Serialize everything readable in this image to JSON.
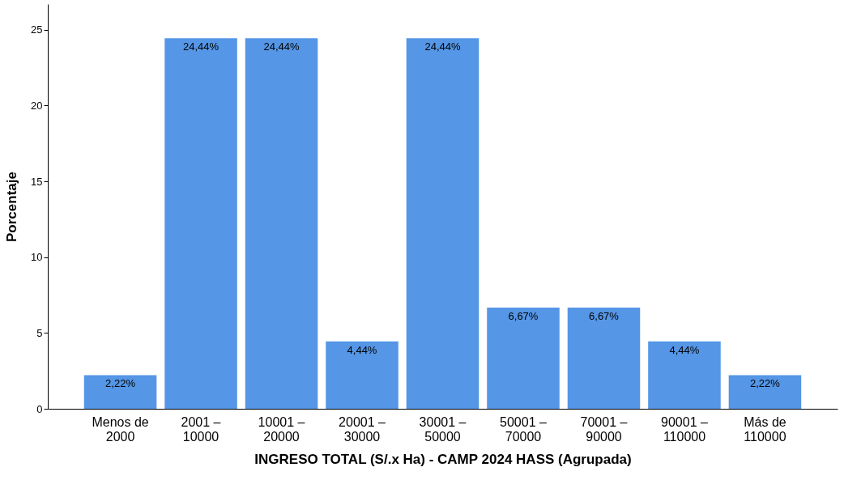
{
  "chart_data": {
    "type": "bar",
    "xlabel": "INGRESO TOTAL (S/.x Ha) - CAMP 2024 HASS (Agrupada)",
    "ylabel": "Porcentaje",
    "categories": [
      "Menos de 2000",
      "2001 – 10000",
      "10001 – 20000",
      "20001 – 30000",
      "30001 – 50000",
      "50001 – 70000",
      "70001 – 90000",
      "90001 – 110000",
      "Más de 110000"
    ],
    "values": [
      2.22,
      24.44,
      24.44,
      4.44,
      24.44,
      6.67,
      6.67,
      4.44,
      2.22
    ],
    "value_labels": [
      "2,22%",
      "24,44%",
      "24,44%",
      "4,44%",
      "24,44%",
      "6,67%",
      "6,67%",
      "4,44%",
      "2,22%"
    ],
    "color": "#5596e6",
    "ylim": [
      0,
      26.7
    ],
    "yticks": [
      0,
      5,
      10,
      15,
      20,
      25
    ],
    "grid": false
  }
}
